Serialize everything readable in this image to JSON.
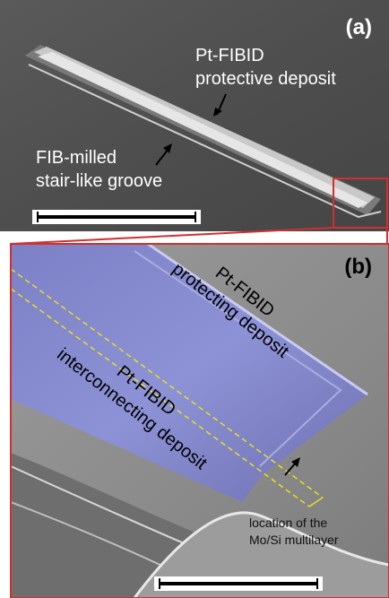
{
  "panels": [
    {
      "label": "(a)",
      "annotations": [
        {
          "lines": [
            "Pt-FIBID",
            "protective deposit"
          ]
        },
        {
          "lines": [
            "FIB-milled",
            "stair-like groove"
          ]
        }
      ]
    },
    {
      "label": "(b)",
      "annotations": [
        {
          "lines": [
            "Pt-FIBID",
            "protecting deposit"
          ]
        },
        {
          "lines": [
            "Pt-FIBID",
            "interconnecting deposit"
          ]
        },
        {
          "lines": [
            "location of the",
            "Mo/Si multilayer"
          ]
        }
      ]
    }
  ]
}
